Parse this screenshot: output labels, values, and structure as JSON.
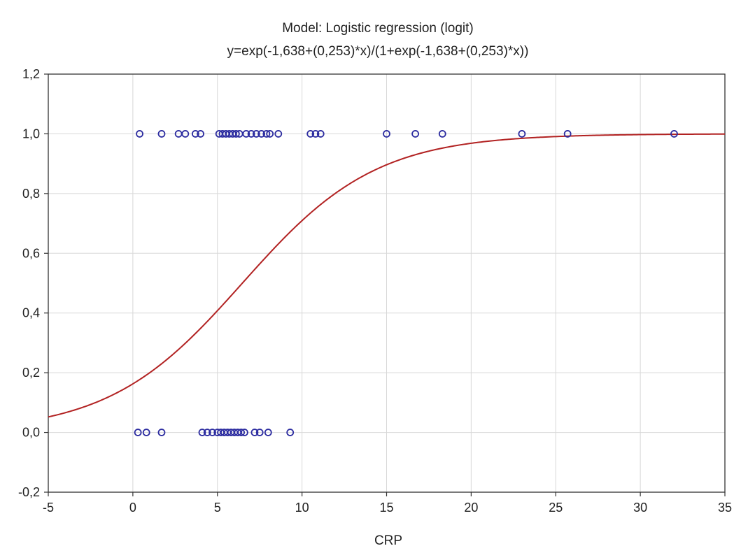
{
  "chart_data": {
    "type": "scatter",
    "title": "Model: Logistic regression (logit)",
    "subtitle": "y=exp(-1,638+(0,253)*x)/(1+exp(-1,638+(0,253)*x))",
    "xlabel": "CRP",
    "ylabel": "",
    "xlim": [
      -5,
      35
    ],
    "ylim": [
      -0.2,
      1.2
    ],
    "xticks": [
      -5,
      0,
      5,
      10,
      15,
      20,
      25,
      30,
      35
    ],
    "xtick_labels": [
      "-5",
      "0",
      "5",
      "10",
      "15",
      "20",
      "25",
      "30",
      "35"
    ],
    "yticks": [
      -0.2,
      0.0,
      0.2,
      0.4,
      0.6,
      0.8,
      1.0,
      1.2
    ],
    "ytick_labels": [
      "-0,2",
      "0,0",
      "0,2",
      "0,4",
      "0,6",
      "0,8",
      "1,0",
      "1,2"
    ],
    "grid": true,
    "model": {
      "intercept": -1.638,
      "slope": 0.253
    },
    "series": [
      {
        "values": [
          {
            "x": 0.4,
            "y": 1
          },
          {
            "x": 1.7,
            "y": 1
          },
          {
            "x": 2.7,
            "y": 1
          },
          {
            "x": 3.1,
            "y": 1
          },
          {
            "x": 3.7,
            "y": 1
          },
          {
            "x": 4.0,
            "y": 1
          },
          {
            "x": 5.1,
            "y": 1
          },
          {
            "x": 5.3,
            "y": 1
          },
          {
            "x": 5.5,
            "y": 1
          },
          {
            "x": 5.7,
            "y": 1
          },
          {
            "x": 5.9,
            "y": 1
          },
          {
            "x": 6.1,
            "y": 1
          },
          {
            "x": 6.3,
            "y": 1
          },
          {
            "x": 6.7,
            "y": 1
          },
          {
            "x": 7.0,
            "y": 1
          },
          {
            "x": 7.3,
            "y": 1
          },
          {
            "x": 7.6,
            "y": 1
          },
          {
            "x": 7.9,
            "y": 1
          },
          {
            "x": 8.1,
            "y": 1
          },
          {
            "x": 8.6,
            "y": 1
          },
          {
            "x": 10.5,
            "y": 1
          },
          {
            "x": 10.8,
            "y": 1
          },
          {
            "x": 11.1,
            "y": 1
          },
          {
            "x": 15.0,
            "y": 1
          },
          {
            "x": 16.7,
            "y": 1
          },
          {
            "x": 18.3,
            "y": 1
          },
          {
            "x": 23.0,
            "y": 1
          },
          {
            "x": 25.7,
            "y": 1
          },
          {
            "x": 32.0,
            "y": 1
          },
          {
            "x": 0.3,
            "y": 0
          },
          {
            "x": 0.8,
            "y": 0
          },
          {
            "x": 1.7,
            "y": 0
          },
          {
            "x": 4.1,
            "y": 0
          },
          {
            "x": 4.4,
            "y": 0
          },
          {
            "x": 4.7,
            "y": 0
          },
          {
            "x": 5.0,
            "y": 0
          },
          {
            "x": 5.2,
            "y": 0
          },
          {
            "x": 5.4,
            "y": 0
          },
          {
            "x": 5.6,
            "y": 0
          },
          {
            "x": 5.8,
            "y": 0
          },
          {
            "x": 6.0,
            "y": 0
          },
          {
            "x": 6.2,
            "y": 0
          },
          {
            "x": 6.4,
            "y": 0
          },
          {
            "x": 6.6,
            "y": 0
          },
          {
            "x": 7.2,
            "y": 0
          },
          {
            "x": 7.5,
            "y": 0
          },
          {
            "x": 8.0,
            "y": 0
          },
          {
            "x": 9.3,
            "y": 0
          }
        ]
      }
    ],
    "fit_curve": {
      "type": "line",
      "from_model": true
    }
  },
  "colors": {
    "curve": "#b22222",
    "points": "#2c2ca0",
    "grid": "#d8d8d8",
    "axis": "#333333",
    "text": "#222222"
  }
}
